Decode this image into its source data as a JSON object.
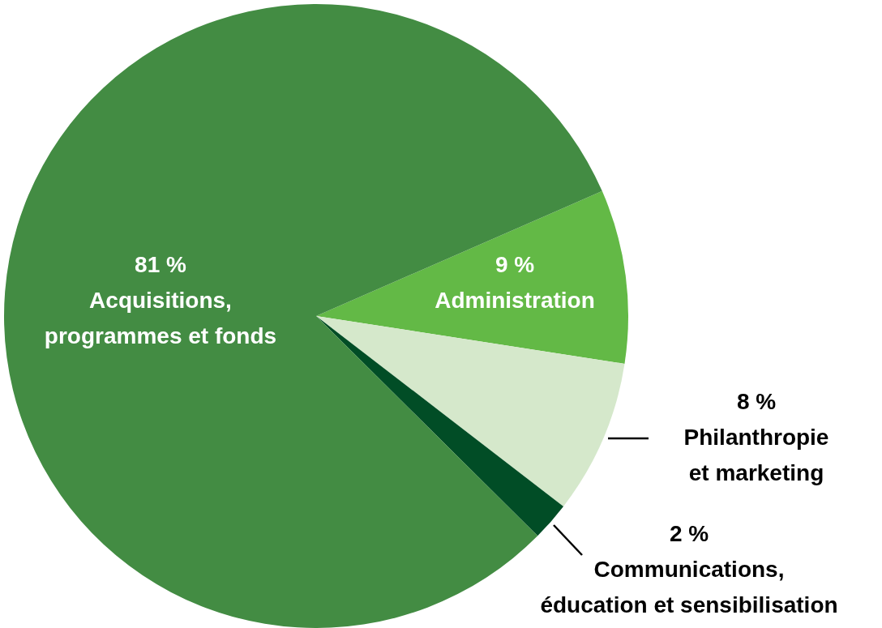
{
  "chart_data": {
    "type": "pie",
    "categories": [
      "Administration",
      "Philanthropie et marketing",
      "Communications, éducation et sensibilisation",
      "Acquisitions, programmes et fonds"
    ],
    "values": [
      9,
      8,
      2,
      81
    ],
    "colors": [
      "#63b946",
      "#d5e8cb",
      "#014d26",
      "#438c43"
    ],
    "value_labels": [
      "9 %",
      "8 %",
      "2 %",
      "81 %"
    ]
  }
}
